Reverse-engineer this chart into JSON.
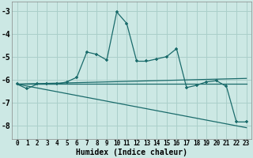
{
  "xlabel": "Humidex (Indice chaleur)",
  "bg_color": "#cce8e4",
  "grid_color": "#aacfca",
  "line_color": "#1a6b6b",
  "xlim": [
    -0.5,
    23.5
  ],
  "ylim": [
    -8.6,
    -2.6
  ],
  "yticks": [
    -8,
    -7,
    -6,
    -5,
    -4,
    -3
  ],
  "xticks": [
    0,
    1,
    2,
    3,
    4,
    5,
    6,
    7,
    8,
    9,
    10,
    11,
    12,
    13,
    14,
    15,
    16,
    17,
    18,
    19,
    20,
    21,
    22,
    23
  ],
  "lines": [
    {
      "x": [
        0,
        1,
        2,
        3,
        4,
        5,
        6,
        7,
        8,
        9,
        10,
        11,
        12,
        13,
        14,
        15,
        16,
        17,
        18,
        19,
        20,
        21,
        22,
        23
      ],
      "y": [
        -6.2,
        -6.4,
        -6.2,
        -6.2,
        -6.2,
        -6.1,
        -5.9,
        -4.8,
        -4.9,
        -5.15,
        -3.05,
        -3.55,
        -5.2,
        -5.2,
        -5.1,
        -5.0,
        -4.65,
        -6.35,
        -6.25,
        -6.1,
        -6.05,
        -6.3,
        -7.85,
        -7.85
      ],
      "has_markers": true
    },
    {
      "x": [
        0,
        23
      ],
      "y": [
        -6.2,
        -5.95
      ],
      "has_markers": false
    },
    {
      "x": [
        0,
        23
      ],
      "y": [
        -6.2,
        -6.2
      ],
      "has_markers": false
    },
    {
      "x": [
        0,
        23
      ],
      "y": [
        -6.2,
        -8.1
      ],
      "has_markers": false
    }
  ]
}
